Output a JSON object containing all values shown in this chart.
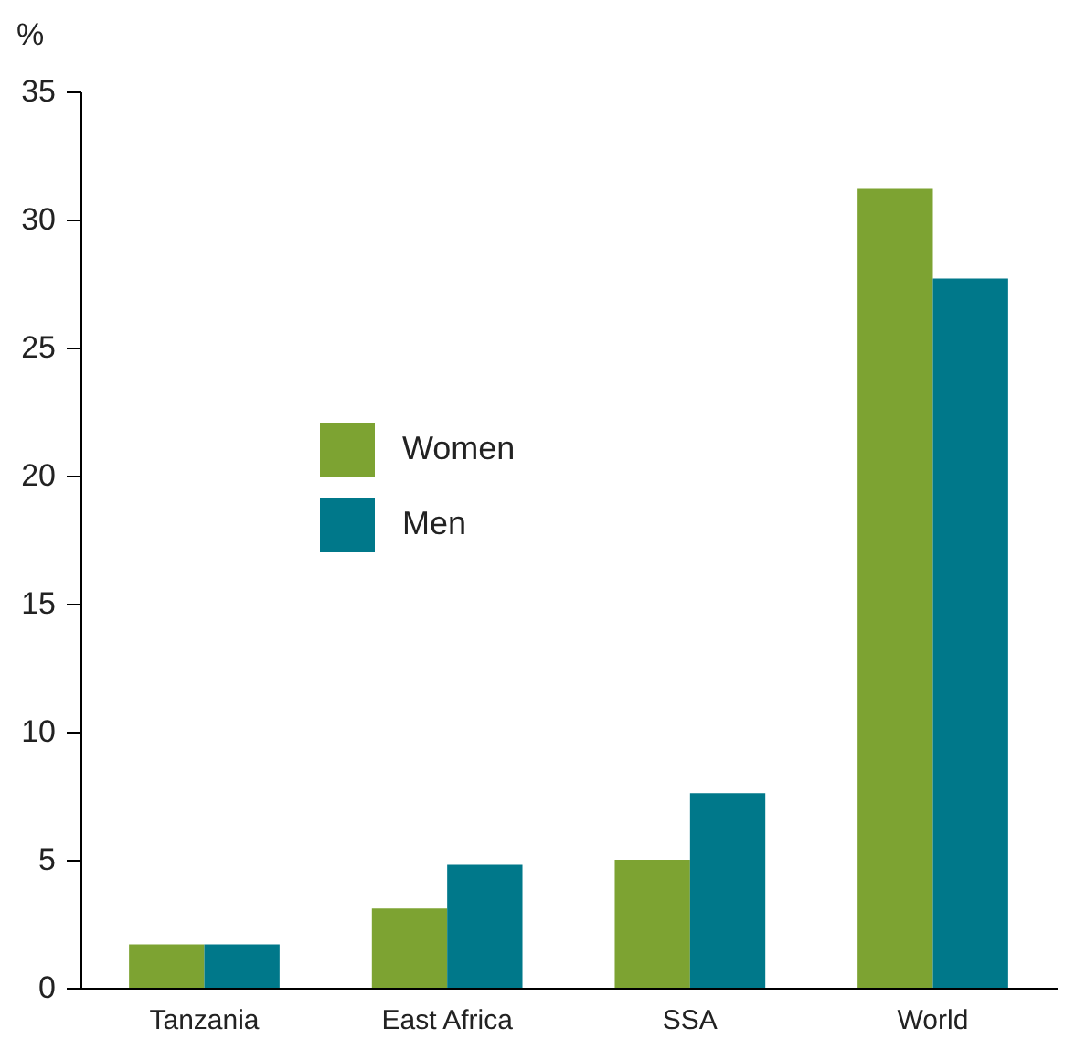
{
  "chart_data": {
    "type": "bar",
    "ylabel": "%",
    "categories": [
      "Tanzania",
      "East Africa",
      "SSA",
      "World"
    ],
    "series": [
      {
        "name": "Women",
        "color": "#7da332",
        "values": [
          1.7,
          3.1,
          5.0,
          31.2
        ]
      },
      {
        "name": "Men",
        "color": "#00788a",
        "values": [
          1.7,
          4.8,
          7.6,
          27.7
        ]
      }
    ],
    "ylim": [
      0,
      35
    ],
    "yticks": [
      0,
      5,
      10,
      15,
      20,
      25,
      30,
      35
    ],
    "grid": false,
    "legend": "top left"
  }
}
